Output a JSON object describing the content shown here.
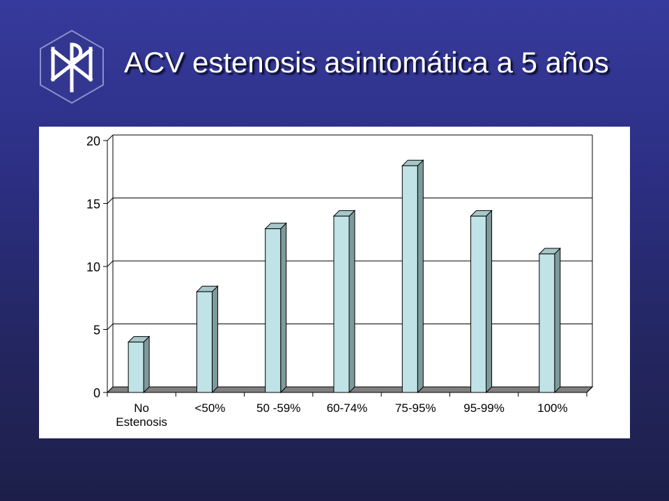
{
  "slide": {
    "title": "ACV estenosis asintomática a 5 años",
    "logo_icon": "chi-rho-hexagon-icon"
  },
  "colors": {
    "background_top": "#373a9c",
    "background_bottom": "#1d1f4a",
    "bar_front": "#bfe3e6",
    "bar_side": "#7f9a9c",
    "bar_top": "#a6c6c8"
  },
  "chart_data": {
    "type": "bar",
    "categories": [
      "No Estenosis",
      "<50%",
      "50 -59%",
      "60-74%",
      "75-95%",
      "95-99%",
      "100%"
    ],
    "category_lines": [
      [
        "No",
        "Estenosis"
      ],
      [
        "<50%"
      ],
      [
        "50 -59%"
      ],
      [
        "60-74%"
      ],
      [
        "75-95%"
      ],
      [
        "95-99%"
      ],
      [
        "100%"
      ]
    ],
    "values": [
      4,
      8,
      13,
      14,
      18,
      14,
      11
    ],
    "ylim": [
      0,
      20
    ],
    "yticks": [
      0,
      5,
      10,
      15,
      20
    ],
    "title": "",
    "xlabel": "",
    "ylabel": "",
    "grid": true,
    "three_d": true,
    "legend": "none"
  }
}
